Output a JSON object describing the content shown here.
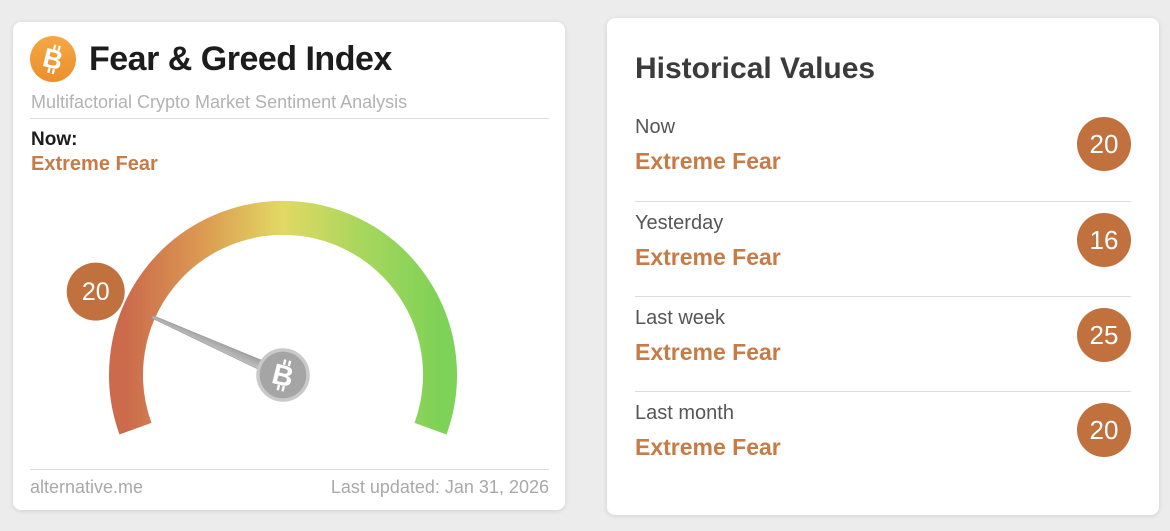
{
  "gauge_card": {
    "title": "Fear & Greed Index",
    "subtitle": "Multifactorial Crypto Market Sentiment Analysis",
    "now_label": "Now:",
    "now_sentiment": "Extreme Fear",
    "footer": {
      "source": "alternative.me",
      "last_updated": "Last updated: Jan 31, 2026"
    }
  },
  "historical_card": {
    "title": "Historical Values",
    "rows": [
      {
        "label": "Now",
        "sentiment": "Extreme Fear",
        "value": "20"
      },
      {
        "label": "Yesterday",
        "sentiment": "Extreme Fear",
        "value": "16"
      },
      {
        "label": "Last week",
        "sentiment": "Extreme Fear",
        "value": "25"
      },
      {
        "label": "Last month",
        "sentiment": "Extreme Fear",
        "value": "20"
      }
    ]
  },
  "colors": {
    "accent_orange_text": "#c77b46",
    "badge_orange": "#c0713d",
    "bitcoin_orange": "#f09a3b",
    "needle_gray": "#aeaeae",
    "hub_gray": "#a5a5a5",
    "gauge_gradient": [
      "#cb6b4c",
      "#dc9b52",
      "#e2d964",
      "#a8d65c",
      "#7ed257"
    ]
  },
  "chart_data": {
    "type": "gauge",
    "title": "Fear & Greed Index",
    "value": 20,
    "value_label": "Extreme Fear",
    "min": 0,
    "max": 100,
    "arc_start_deg": 200,
    "arc_sweep_deg": 220,
    "color_scale": [
      "#cb6b4c",
      "#dc9b52",
      "#e2d964",
      "#a8d65c",
      "#7ed257"
    ],
    "historical": [
      {
        "label": "Now",
        "value": 20,
        "classification": "Extreme Fear"
      },
      {
        "label": "Yesterday",
        "value": 16,
        "classification": "Extreme Fear"
      },
      {
        "label": "Last week",
        "value": 25,
        "classification": "Extreme Fear"
      },
      {
        "label": "Last month",
        "value": 20,
        "classification": "Extreme Fear"
      }
    ]
  }
}
